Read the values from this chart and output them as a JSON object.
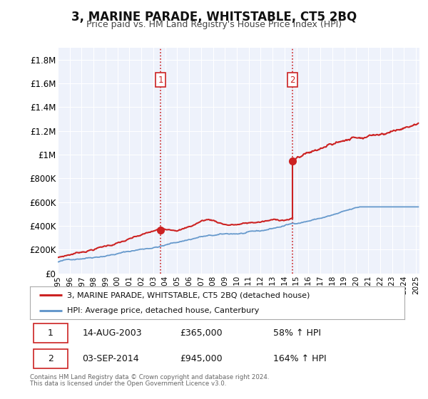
{
  "title": "3, MARINE PARADE, WHITSTABLE, CT5 2BQ",
  "subtitle": "Price paid vs. HM Land Registry's House Price Index (HPI)",
  "ylim": [
    0,
    1900000
  ],
  "xlim_start": 1995.0,
  "xlim_end": 2025.3,
  "background_color": "#ffffff",
  "plot_bg_color": "#eef2fb",
  "grid_color": "#ffffff",
  "hpi_line_color": "#6699cc",
  "price_line_color": "#cc2222",
  "sale1_x": 2003.617,
  "sale1_y": 365000,
  "sale2_x": 2014.669,
  "sale2_y": 945000,
  "legend_label1": "3, MARINE PARADE, WHITSTABLE, CT5 2BQ (detached house)",
  "legend_label2": "HPI: Average price, detached house, Canterbury",
  "table_row1": [
    "1",
    "14-AUG-2003",
    "£365,000",
    "58% ↑ HPI"
  ],
  "table_row2": [
    "2",
    "03-SEP-2014",
    "£945,000",
    "164% ↑ HPI"
  ],
  "footer1": "Contains HM Land Registry data © Crown copyright and database right 2024.",
  "footer2": "This data is licensed under the Open Government Licence v3.0.",
  "ytick_labels": [
    "£0",
    "£200K",
    "£400K",
    "£600K",
    "£800K",
    "£1M",
    "£1.2M",
    "£1.4M",
    "£1.6M",
    "£1.8M"
  ],
  "ytick_values": [
    0,
    200000,
    400000,
    600000,
    800000,
    1000000,
    1200000,
    1400000,
    1600000,
    1800000
  ],
  "xtick_years": [
    1995,
    1996,
    1997,
    1998,
    1999,
    2000,
    2001,
    2002,
    2003,
    2004,
    2005,
    2006,
    2007,
    2008,
    2009,
    2010,
    2011,
    2012,
    2013,
    2014,
    2015,
    2016,
    2017,
    2018,
    2019,
    2020,
    2021,
    2022,
    2023,
    2024,
    2025
  ]
}
